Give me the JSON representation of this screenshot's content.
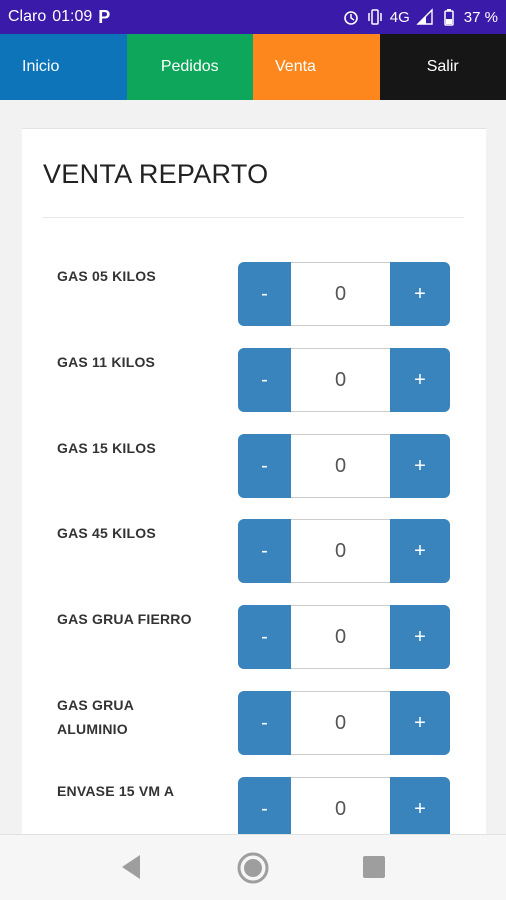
{
  "status_bar": {
    "carrier": "Claro",
    "time": "01:09",
    "network": "4G",
    "battery": "37 %"
  },
  "nav": {
    "items": [
      {
        "label": "Inicio",
        "color": "#0d74b9"
      },
      {
        "label": "Pedidos",
        "color": "#0ea65a"
      },
      {
        "label": "Venta",
        "color": "#fd871c"
      },
      {
        "label": "Salir",
        "color": "#161616"
      }
    ]
  },
  "page": {
    "title": "VENTA REPARTO"
  },
  "stepper": {
    "minus_label": "-",
    "plus_label": "+"
  },
  "products": [
    {
      "label": "GAS 05 KILOS",
      "qty": "0"
    },
    {
      "label": "GAS 11 KILOS",
      "qty": "0"
    },
    {
      "label": "GAS 15 KILOS",
      "qty": "0"
    },
    {
      "label": "GAS 45 KILOS",
      "qty": "0"
    },
    {
      "label": "GAS GRUA FIERRO",
      "qty": "0"
    },
    {
      "label": "GAS GRUA ALUMINIO",
      "qty": "0"
    },
    {
      "label": "ENVASE 15 VM A",
      "qty": "0"
    }
  ],
  "colors": {
    "status_bar": "#3a1aa8",
    "stepper_button": "#3a84bd"
  }
}
